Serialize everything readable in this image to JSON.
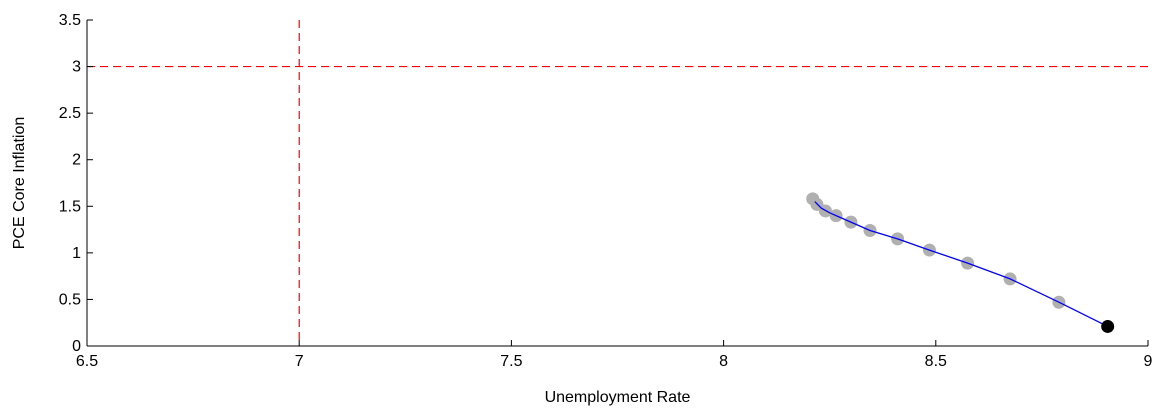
{
  "chart_data": {
    "type": "scatter",
    "title": "",
    "xlabel": "Unemployment Rate",
    "ylabel": "PCE Core Inflation",
    "xlim": [
      6.5,
      9
    ],
    "ylim": [
      0,
      3.5
    ],
    "xticks": [
      6.5,
      7,
      7.5,
      8,
      8.5,
      9
    ],
    "yticks": [
      0,
      0.5,
      1,
      1.5,
      2,
      2.5,
      3,
      3.5
    ],
    "xtick_labels": [
      "6.5",
      "7",
      "7.5",
      "8",
      "8.5",
      "9"
    ],
    "ytick_labels": [
      "0",
      "0.5",
      "1",
      "1.5",
      "2",
      "2.5",
      "3",
      "3.5"
    ],
    "grid": false,
    "legend": "none",
    "reference_lines": [
      {
        "orientation": "vertical",
        "value": 7,
        "style": "dashed",
        "color": "#ff0000"
      },
      {
        "orientation": "horizontal",
        "value": 3,
        "style": "dashed",
        "color": "#ff0000"
      }
    ],
    "series": [
      {
        "kind": "markers",
        "color": "#b0b0b0",
        "x": [
          8.21,
          8.22,
          8.24,
          8.265,
          8.3,
          8.345,
          8.41,
          8.485,
          8.575,
          8.675,
          8.79
        ],
        "y": [
          1.58,
          1.52,
          1.45,
          1.4,
          1.33,
          1.24,
          1.15,
          1.03,
          0.89,
          0.72,
          0.47
        ]
      },
      {
        "kind": "line",
        "color": "#0000ff",
        "x": [
          8.215,
          8.23,
          8.25,
          8.275,
          8.3,
          8.345,
          8.41,
          8.485,
          8.575,
          8.675,
          8.79,
          8.905
        ],
        "y": [
          1.55,
          1.48,
          1.43,
          1.38,
          1.33,
          1.24,
          1.15,
          1.03,
          0.89,
          0.72,
          0.47,
          0.21
        ]
      },
      {
        "kind": "markers",
        "color": "#000000",
        "x": [
          8.905
        ],
        "y": [
          0.21
        ]
      }
    ]
  }
}
